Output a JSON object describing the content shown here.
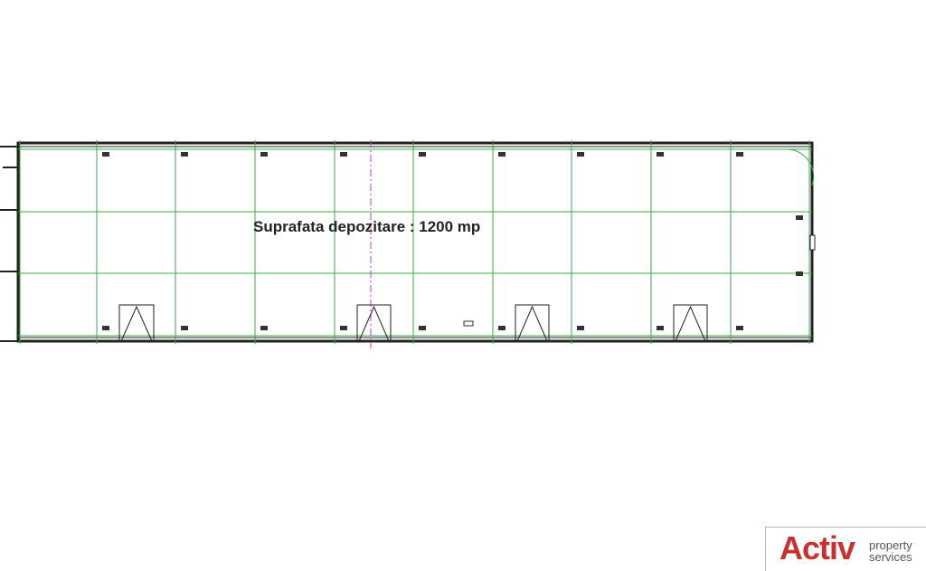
{
  "plan": {
    "area_label": "Suprafata depozitare : 1200 mp",
    "colors": {
      "grid": "#3aa845",
      "walls": "#222222",
      "axis": "#c040c0"
    }
  },
  "logo": {
    "brand": "Activ",
    "tagline_1": "property",
    "tagline_2": "services",
    "color": "#c8312f"
  }
}
